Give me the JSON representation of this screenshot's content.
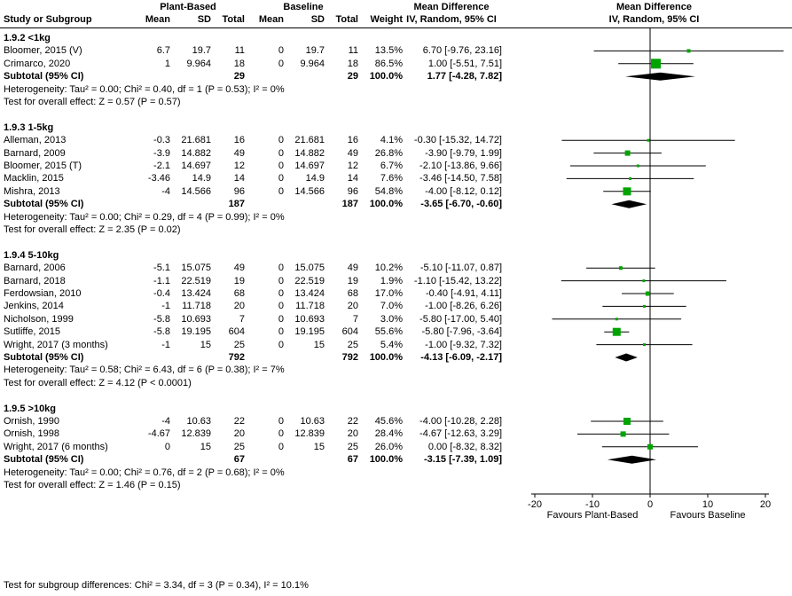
{
  "header": {
    "treatment_group": "Plant-Based",
    "control_group": "Baseline",
    "effect_col_title": "Mean Difference",
    "plot_title": "Mean Difference",
    "plot_subtitle": "IV, Random, 95% CI",
    "cols": [
      "Study or Subgroup",
      "Mean",
      "SD",
      "Total",
      "Mean",
      "SD",
      "Total",
      "Weight",
      "IV, Random, 95% CI"
    ]
  },
  "chart_data": {
    "type": "forest",
    "effect_measure": "Mean Difference IV, Random, 95% CI",
    "marker_color": "#00A400",
    "diamond_color": "#000000",
    "x_axis": {
      "min": -20,
      "max": 20,
      "ticks": [
        -20,
        -10,
        0,
        10,
        20
      ],
      "label_left": "Favours Plant-Based",
      "label_right": "Favours Baseline"
    },
    "footer": "Test for subgroup differences: Chi² = 3.34, df = 3 (P = 0.34), I² = 10.1%",
    "subgroups": [
      {
        "label": "1.9.2 <1kg",
        "studies": [
          {
            "name": "Bloomer, 2015 (V)",
            "mean": "6.7",
            "sd": "19.7",
            "total": "11",
            "b_mean": "0",
            "b_sd": "19.7",
            "b_total": "11",
            "weight": "13.5%",
            "weight_val": 13.5,
            "ci_text": "6.70 [-9.76, 23.16]",
            "est": 6.7,
            "lo": -9.76,
            "hi": 23.16
          },
          {
            "name": "Crimarco, 2020",
            "mean": "1",
            "sd": "9.964",
            "total": "18",
            "b_mean": "0",
            "b_sd": "9.964",
            "b_total": "18",
            "weight": "86.5%",
            "weight_val": 86.5,
            "ci_text": "1.00 [-5.51, 7.51]",
            "est": 1.0,
            "lo": -5.51,
            "hi": 7.51
          }
        ],
        "subtotal": {
          "label": "Subtotal (95% CI)",
          "total": "29",
          "b_total": "29",
          "weight": "100.0%",
          "ci_text": "1.77 [-4.28, 7.82]",
          "est": 1.77,
          "lo": -4.28,
          "hi": 7.82
        },
        "heterogeneity": "Heterogeneity: Tau² = 0.00; Chi² = 0.40, df = 1 (P = 0.53); I² = 0%",
        "overall": "Test for overall effect: Z = 0.57 (P = 0.57)"
      },
      {
        "label": "1.9.3 1-5kg",
        "studies": [
          {
            "name": "Alleman, 2013",
            "mean": "-0.3",
            "sd": "21.681",
            "total": "16",
            "b_mean": "0",
            "b_sd": "21.681",
            "b_total": "16",
            "weight": "4.1%",
            "weight_val": 4.1,
            "ci_text": "-0.30 [-15.32, 14.72]",
            "est": -0.3,
            "lo": -15.32,
            "hi": 14.72
          },
          {
            "name": "Barnard, 2009",
            "mean": "-3.9",
            "sd": "14.882",
            "total": "49",
            "b_mean": "0",
            "b_sd": "14.882",
            "b_total": "49",
            "weight": "26.8%",
            "weight_val": 26.8,
            "ci_text": "-3.90 [-9.79, 1.99]",
            "est": -3.9,
            "lo": -9.79,
            "hi": 1.99
          },
          {
            "name": "Bloomer, 2015 (T)",
            "mean": "-2.1",
            "sd": "14.697",
            "total": "12",
            "b_mean": "0",
            "b_sd": "14.697",
            "b_total": "12",
            "weight": "6.7%",
            "weight_val": 6.7,
            "ci_text": "-2.10 [-13.86, 9.66]",
            "est": -2.1,
            "lo": -13.86,
            "hi": 9.66
          },
          {
            "name": "Macklin, 2015",
            "mean": "-3.46",
            "sd": "14.9",
            "total": "14",
            "b_mean": "0",
            "b_sd": "14.9",
            "b_total": "14",
            "weight": "7.6%",
            "weight_val": 7.6,
            "ci_text": "-3.46 [-14.50, 7.58]",
            "est": -3.46,
            "lo": -14.5,
            "hi": 7.58
          },
          {
            "name": "Mishra, 2013",
            "mean": "-4",
            "sd": "14.566",
            "total": "96",
            "b_mean": "0",
            "b_sd": "14.566",
            "b_total": "96",
            "weight": "54.8%",
            "weight_val": 54.8,
            "ci_text": "-4.00 [-8.12, 0.12]",
            "est": -4.0,
            "lo": -8.12,
            "hi": 0.12
          }
        ],
        "subtotal": {
          "label": "Subtotal (95% CI)",
          "total": "187",
          "b_total": "187",
          "weight": "100.0%",
          "ci_text": "-3.65 [-6.70, -0.60]",
          "est": -3.65,
          "lo": -6.7,
          "hi": -0.6
        },
        "heterogeneity": "Heterogeneity: Tau² = 0.00; Chi² = 0.29, df = 4 (P = 0.99); I² = 0%",
        "overall": "Test for overall effect: Z = 2.35 (P = 0.02)"
      },
      {
        "label": "1.9.4 5-10kg",
        "studies": [
          {
            "name": "Barnard, 2006",
            "mean": "-5.1",
            "sd": "15.075",
            "total": "49",
            "b_mean": "0",
            "b_sd": "15.075",
            "b_total": "49",
            "weight": "10.2%",
            "weight_val": 10.2,
            "ci_text": "-5.10 [-11.07, 0.87]",
            "est": -5.1,
            "lo": -11.07,
            "hi": 0.87
          },
          {
            "name": "Barnard, 2018",
            "mean": "-1.1",
            "sd": "22.519",
            "total": "19",
            "b_mean": "0",
            "b_sd": "22.519",
            "b_total": "19",
            "weight": "1.9%",
            "weight_val": 1.9,
            "ci_text": "-1.10 [-15.42, 13.22]",
            "est": -1.1,
            "lo": -15.42,
            "hi": 13.22
          },
          {
            "name": "Ferdowsian, 2010",
            "mean": "-0.4",
            "sd": "13.424",
            "total": "68",
            "b_mean": "0",
            "b_sd": "13.424",
            "b_total": "68",
            "weight": "17.0%",
            "weight_val": 17.0,
            "ci_text": "-0.40 [-4.91, 4.11]",
            "est": -0.4,
            "lo": -4.91,
            "hi": 4.11
          },
          {
            "name": "Jenkins, 2014",
            "mean": "-1",
            "sd": "11.718",
            "total": "20",
            "b_mean": "0",
            "b_sd": "11.718",
            "b_total": "20",
            "weight": "7.0%",
            "weight_val": 7.0,
            "ci_text": "-1.00 [-8.26, 6.26]",
            "est": -1.0,
            "lo": -8.26,
            "hi": 6.26
          },
          {
            "name": "Nicholson, 1999",
            "mean": "-5.8",
            "sd": "10.693",
            "total": "7",
            "b_mean": "0",
            "b_sd": "10.693",
            "b_total": "7",
            "weight": "3.0%",
            "weight_val": 3.0,
            "ci_text": "-5.80 [-17.00, 5.40]",
            "est": -5.8,
            "lo": -17.0,
            "hi": 5.4
          },
          {
            "name": "Sutliffe, 2015",
            "mean": "-5.8",
            "sd": "19.195",
            "total": "604",
            "b_mean": "0",
            "b_sd": "19.195",
            "b_total": "604",
            "weight": "55.6%",
            "weight_val": 55.6,
            "ci_text": "-5.80 [-7.96, -3.64]",
            "est": -5.8,
            "lo": -7.96,
            "hi": -3.64
          },
          {
            "name": "Wright, 2017 (3 months)",
            "mean": "-1",
            "sd": "15",
            "total": "25",
            "b_mean": "0",
            "b_sd": "15",
            "b_total": "25",
            "weight": "5.4%",
            "weight_val": 5.4,
            "ci_text": "-1.00 [-9.32, 7.32]",
            "est": -1.0,
            "lo": -9.32,
            "hi": 7.32
          }
        ],
        "subtotal": {
          "label": "Subtotal (95% CI)",
          "total": "792",
          "b_total": "792",
          "weight": "100.0%",
          "ci_text": "-4.13 [-6.09, -2.17]",
          "est": -4.13,
          "lo": -6.09,
          "hi": -2.17
        },
        "heterogeneity": "Heterogeneity: Tau² = 0.58; Chi² = 6.43, df = 6 (P = 0.38); I² = 7%",
        "overall": "Test for overall effect: Z = 4.12 (P < 0.0001)"
      },
      {
        "label": "1.9.5 >10kg",
        "studies": [
          {
            "name": "Ornish, 1990",
            "mean": "-4",
            "sd": "10.63",
            "total": "22",
            "b_mean": "0",
            "b_sd": "10.63",
            "b_total": "22",
            "weight": "45.6%",
            "weight_val": 45.6,
            "ci_text": "-4.00 [-10.28, 2.28]",
            "est": -4.0,
            "lo": -10.28,
            "hi": 2.28
          },
          {
            "name": "Ornish, 1998",
            "mean": "-4.67",
            "sd": "12.839",
            "total": "20",
            "b_mean": "0",
            "b_sd": "12.839",
            "b_total": "20",
            "weight": "28.4%",
            "weight_val": 28.4,
            "ci_text": "-4.67 [-12.63, 3.29]",
            "est": -4.67,
            "lo": -12.63,
            "hi": 3.29
          },
          {
            "name": "Wright, 2017 (6 months)",
            "mean": "0",
            "sd": "15",
            "total": "25",
            "b_mean": "0",
            "b_sd": "15",
            "b_total": "25",
            "weight": "26.0%",
            "weight_val": 26.0,
            "ci_text": "0.00 [-8.32, 8.32]",
            "est": 0.0,
            "lo": -8.32,
            "hi": 8.32
          }
        ],
        "subtotal": {
          "label": "Subtotal (95% CI)",
          "total": "67",
          "b_total": "67",
          "weight": "100.0%",
          "ci_text": "-3.15 [-7.39, 1.09]",
          "est": -3.15,
          "lo": -7.39,
          "hi": 1.09
        },
        "heterogeneity": "Heterogeneity: Tau² = 0.00; Chi² = 0.76, df = 2 (P = 0.68); I² = 0%",
        "overall": "Test for overall effect: Z = 1.46 (P = 0.15)"
      }
    ]
  }
}
